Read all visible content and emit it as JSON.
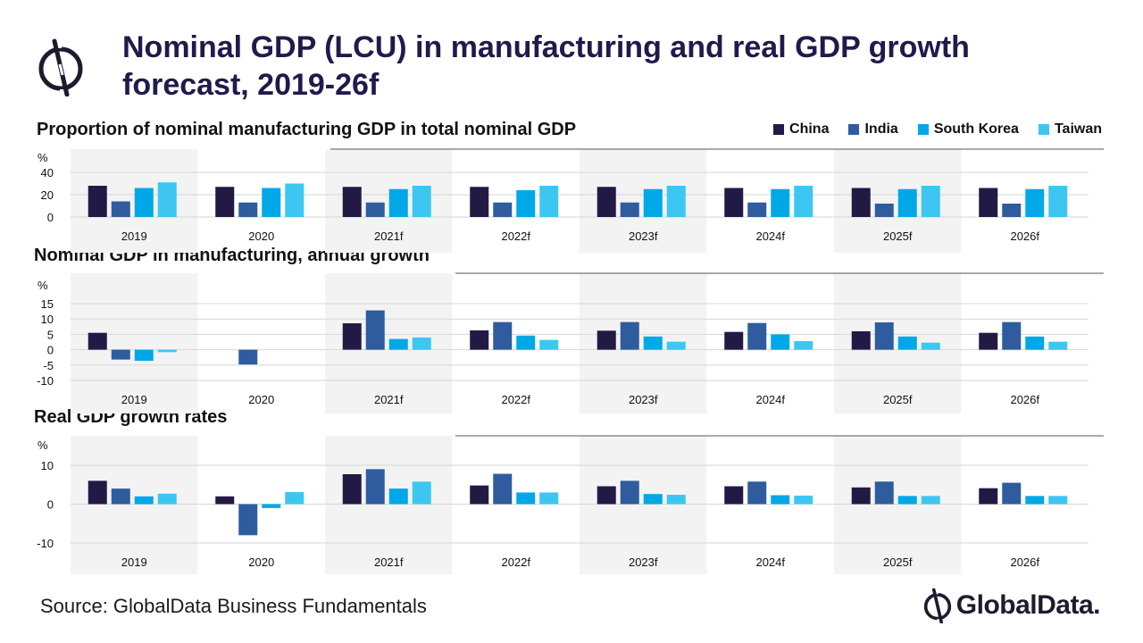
{
  "title": "Nominal GDP (LCU) in manufacturing and real GDP growth forecast, 2019-26f",
  "source": "Source: GlobalData Business Fundamentals",
  "brand": "GlobalData.",
  "legend": [
    {
      "name": "China",
      "color": "#221a45"
    },
    {
      "name": "India",
      "color": "#2e5c9e"
    },
    {
      "name": "South Korea",
      "color": "#00a8e8"
    },
    {
      "name": "Taiwan",
      "color": "#3ec6f2"
    }
  ],
  "chart_data": [
    {
      "type": "bar",
      "title": "Proportion of nominal manufacturing GDP in total nominal GDP",
      "ylabel": "%",
      "categories": [
        "2019",
        "2020",
        "2021f",
        "2022f",
        "2023f",
        "2024f",
        "2025f",
        "2026f"
      ],
      "ylim": [
        0,
        40
      ],
      "yticks": [
        0,
        20,
        40
      ],
      "grid": true,
      "legend_position": "top-right",
      "series": [
        {
          "name": "China",
          "values": [
            28,
            27,
            27,
            27,
            27,
            26,
            26,
            26
          ]
        },
        {
          "name": "India",
          "values": [
            14,
            13,
            13,
            13,
            13,
            13,
            12,
            12
          ]
        },
        {
          "name": "South Korea",
          "values": [
            26,
            26,
            25,
            24,
            25,
            25,
            25,
            25
          ]
        },
        {
          "name": "Taiwan",
          "values": [
            31,
            30,
            28,
            28,
            28,
            28,
            28,
            28
          ]
        }
      ]
    },
    {
      "type": "bar",
      "title": "Nominal GDP in manufacturing, annual growth",
      "ylabel": "%",
      "categories": [
        "2019",
        "2020",
        "2021f",
        "2022f",
        "2023f",
        "2024f",
        "2025f",
        "2026f"
      ],
      "ylim": [
        -10,
        15
      ],
      "yticks": [
        -10,
        -5,
        0,
        5,
        10,
        15
      ],
      "grid": true,
      "series": [
        {
          "name": "China",
          "values": [
            5.5,
            0,
            8.6,
            6.3,
            6.2,
            5.8,
            6.0,
            5.5
          ]
        },
        {
          "name": "India",
          "values": [
            -3.2,
            -4.8,
            12.8,
            9.0,
            9.0,
            8.7,
            8.9,
            9.0
          ]
        },
        {
          "name": "South Korea",
          "values": [
            -3.6,
            0,
            3.5,
            4.6,
            4.3,
            5.0,
            4.3,
            4.3
          ]
        },
        {
          "name": "Taiwan",
          "values": [
            -0.8,
            0,
            4.0,
            3.2,
            2.6,
            2.8,
            2.3,
            2.6
          ]
        }
      ]
    },
    {
      "type": "bar",
      "title": "Real GDP growth rates",
      "ylabel": "%",
      "categories": [
        "2019",
        "2020",
        "2021f",
        "2022f",
        "2023f",
        "2024f",
        "2025f",
        "2026f"
      ],
      "ylim": [
        -10,
        10
      ],
      "yticks": [
        -10,
        0,
        10
      ],
      "grid": true,
      "series": [
        {
          "name": "China",
          "values": [
            6.0,
            2.0,
            7.7,
            4.8,
            4.6,
            4.6,
            4.3,
            4.1
          ]
        },
        {
          "name": "India",
          "values": [
            4.0,
            -8.0,
            9.0,
            7.8,
            6.0,
            5.8,
            5.8,
            5.5
          ]
        },
        {
          "name": "South Korea",
          "values": [
            2.0,
            -1.0,
            4.0,
            3.0,
            2.6,
            2.3,
            2.1,
            2.1
          ]
        },
        {
          "name": "Taiwan",
          "values": [
            2.7,
            3.1,
            5.8,
            3.0,
            2.4,
            2.2,
            2.1,
            2.1
          ]
        }
      ]
    }
  ]
}
